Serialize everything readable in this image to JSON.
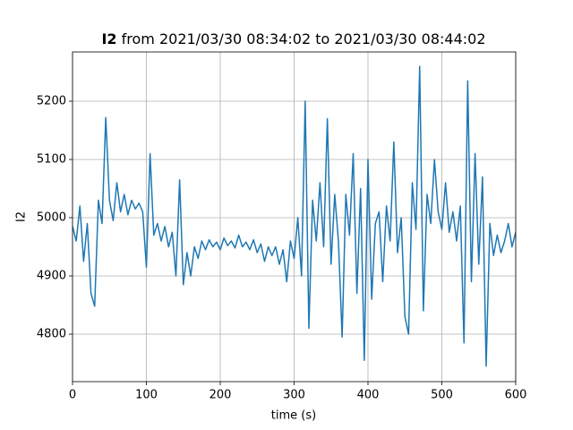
{
  "chart_data": {
    "type": "line",
    "title": [
      "I2",
      "from 2021/03/30 08:34:02 to 2021/03/30 08:44:02"
    ],
    "xlabel": "time (s)",
    "ylabel": "I2",
    "xlim": [
      0,
      600
    ],
    "xticks": [
      0,
      100,
      200,
      300,
      400,
      500,
      600
    ],
    "ylim": [
      4718.5,
      5284.6
    ],
    "yticks": [
      4800,
      4900,
      5000,
      5100,
      5200
    ],
    "grid": true,
    "x": [
      0,
      5,
      10,
      15,
      20,
      25,
      30,
      35,
      40,
      45,
      50,
      55,
      60,
      65,
      70,
      75,
      80,
      85,
      90,
      95,
      100,
      105,
      110,
      115,
      120,
      125,
      130,
      135,
      140,
      145,
      150,
      155,
      160,
      165,
      170,
      175,
      180,
      185,
      190,
      195,
      200,
      205,
      210,
      215,
      220,
      225,
      230,
      235,
      240,
      245,
      250,
      255,
      260,
      265,
      270,
      275,
      280,
      285,
      290,
      295,
      300,
      305,
      310,
      315,
      320,
      325,
      330,
      335,
      340,
      345,
      350,
      355,
      360,
      365,
      370,
      375,
      380,
      385,
      390,
      395,
      400,
      405,
      410,
      415,
      420,
      425,
      430,
      435,
      440,
      445,
      450,
      455,
      460,
      465,
      470,
      475,
      480,
      485,
      490,
      495,
      500,
      505,
      510,
      515,
      520,
      525,
      530,
      535,
      540,
      545,
      550,
      555,
      560,
      565,
      570,
      575,
      580,
      585,
      590,
      595,
      600
    ],
    "series": [
      {
        "name": "I2",
        "color": "#1f77b4",
        "values": [
          4985,
          4960,
          5020,
          4925,
          4990,
          4870,
          4848,
          5030,
          4990,
          5172,
          5030,
          4995,
          5060,
          5010,
          5040,
          5005,
          5030,
          5015,
          5025,
          5010,
          4915,
          5110,
          4970,
          4990,
          4960,
          4985,
          4950,
          4975,
          4900,
          5065,
          4885,
          4940,
          4900,
          4950,
          4930,
          4960,
          4945,
          4962,
          4950,
          4958,
          4945,
          4965,
          4952,
          4960,
          4948,
          4970,
          4950,
          4958,
          4945,
          4962,
          4940,
          4955,
          4925,
          4950,
          4935,
          4950,
          4920,
          4945,
          4890,
          4960,
          4930,
          5000,
          4900,
          5200,
          4810,
          5030,
          4960,
          5060,
          4950,
          5170,
          4920,
          5040,
          4960,
          4795,
          5040,
          4970,
          5110,
          4870,
          5050,
          4755,
          5100,
          4860,
          4990,
          5010,
          4890,
          5020,
          4960,
          5130,
          4940,
          5000,
          4830,
          4800,
          5060,
          4980,
          5260,
          4840,
          5040,
          4990,
          5100,
          5010,
          4980,
          5060,
          4975,
          5010,
          4960,
          5020,
          4785,
          5235,
          4890,
          5110,
          4920,
          5070,
          4745,
          4990,
          4935,
          4970,
          4940,
          4960,
          4990,
          4950,
          4975
        ]
      }
    ]
  }
}
